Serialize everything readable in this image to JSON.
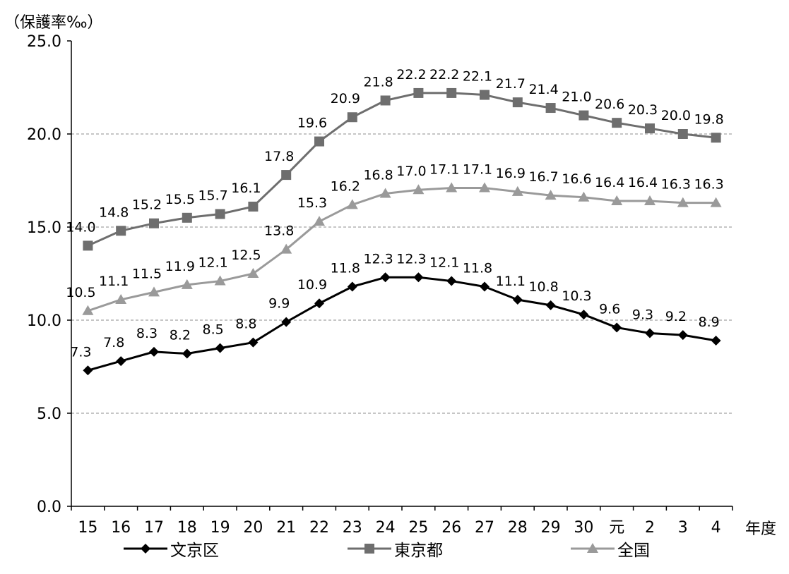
{
  "chart_data": {
    "type": "line",
    "ylabel": "（保護率‰）",
    "xlabel": "年度",
    "categories": [
      "15",
      "16",
      "17",
      "18",
      "19",
      "20",
      "21",
      "22",
      "23",
      "24",
      "25",
      "26",
      "27",
      "28",
      "29",
      "30",
      "元",
      "2",
      "3",
      "4"
    ],
    "ylim": [
      0,
      25
    ],
    "yticks": [
      "0.0",
      "5.0",
      "10.0",
      "15.0",
      "20.0",
      "25.0"
    ],
    "grid": true,
    "legend_position": "bottom",
    "series": [
      {
        "name": "文京区",
        "marker": "diamond",
        "color": "#000000",
        "values": [
          7.3,
          7.8,
          8.3,
          8.2,
          8.5,
          8.8,
          9.9,
          10.9,
          11.8,
          12.3,
          12.3,
          12.1,
          11.8,
          11.1,
          10.8,
          10.3,
          9.6,
          9.3,
          9.2,
          8.9
        ],
        "labels": [
          "7.3",
          "7.8",
          "8.3",
          "8.2",
          "8.5",
          "8.8",
          "9.9",
          "10.9",
          "11.8",
          "12.3",
          "12.3",
          "12.1",
          "11.8",
          "11.1",
          "10.8",
          "10.3",
          "9.6",
          "9.3",
          "9.2",
          "8.9"
        ]
      },
      {
        "name": "東京都",
        "marker": "square",
        "color": "#6e6e6e",
        "values": [
          14.0,
          14.8,
          15.2,
          15.5,
          15.7,
          16.1,
          17.8,
          19.6,
          20.9,
          21.8,
          22.2,
          22.2,
          22.1,
          21.7,
          21.4,
          21.0,
          20.6,
          20.3,
          20.0,
          19.8
        ],
        "labels": [
          "14.0",
          "14.8",
          "15.2",
          "15.5",
          "15.7",
          "16.1",
          "17.8",
          "19.6",
          "20.9",
          "21.8",
          "22.2",
          "22.2",
          "22.1",
          "21.7",
          "21.4",
          "21.0",
          "20.6",
          "20.3",
          "20.0",
          "19.8"
        ]
      },
      {
        "name": "全国",
        "marker": "triangle",
        "color": "#9a9a9a",
        "values": [
          10.5,
          11.1,
          11.5,
          11.9,
          12.1,
          12.5,
          13.8,
          15.3,
          16.2,
          16.8,
          17.0,
          17.1,
          17.1,
          16.9,
          16.7,
          16.6,
          16.4,
          16.4,
          16.3,
          16.3
        ],
        "labels": [
          "10.5",
          "11.1",
          "11.5",
          "11.9",
          "12.1",
          "12.5",
          "13.8",
          "15.3",
          "16.2",
          "16.8",
          "17.0",
          "17.1",
          "17.1",
          "16.9",
          "16.7",
          "16.6",
          "16.4",
          "16.4",
          "16.3",
          "16.3"
        ]
      }
    ]
  }
}
